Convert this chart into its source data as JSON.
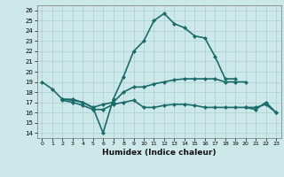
{
  "title": "",
  "xlabel": "Humidex (Indice chaleur)",
  "xlim": [
    -0.5,
    23.5
  ],
  "ylim": [
    13.5,
    26.5
  ],
  "xticks": [
    0,
    1,
    2,
    3,
    4,
    5,
    6,
    7,
    8,
    9,
    10,
    11,
    12,
    13,
    14,
    15,
    16,
    17,
    18,
    19,
    20,
    21,
    22,
    23
  ],
  "yticks": [
    14,
    15,
    16,
    17,
    18,
    19,
    20,
    21,
    22,
    23,
    24,
    25,
    26
  ],
  "bg_color": "#cce8e8",
  "line_color": "#1a6b6b",
  "grid_color": "#aacfcf",
  "lines": [
    {
      "x": [
        0,
        1,
        2,
        3,
        4,
        5,
        6,
        7,
        8,
        9,
        10,
        11,
        12,
        13,
        14,
        15,
        16,
        17,
        18,
        19
      ],
      "y": [
        19.0,
        18.3,
        17.3,
        17.3,
        17.0,
        16.5,
        14.0,
        17.3,
        19.5,
        22.0,
        23.0,
        25.0,
        25.7,
        24.7,
        24.3,
        23.5,
        23.3,
        21.5,
        19.3,
        19.3
      ],
      "marker": "D",
      "markersize": 2,
      "linewidth": 1.2
    },
    {
      "x": [
        2,
        3,
        4,
        5,
        6,
        7,
        8,
        9,
        10,
        11,
        12,
        13,
        14,
        15,
        16,
        17,
        18,
        19,
        20
      ],
      "y": [
        17.3,
        17.2,
        17.0,
        16.5,
        16.8,
        17.0,
        18.0,
        18.5,
        18.5,
        18.8,
        19.0,
        19.2,
        19.3,
        19.3,
        19.3,
        19.3,
        19.0,
        19.0,
        19.0
      ],
      "marker": "D",
      "markersize": 2,
      "linewidth": 1.2
    },
    {
      "x": [
        2,
        3,
        4,
        5,
        6,
        7,
        8,
        9,
        10,
        11,
        12,
        13,
        14,
        15,
        16,
        17,
        18,
        19,
        20,
        21,
        22,
        23
      ],
      "y": [
        17.2,
        17.0,
        16.7,
        16.3,
        16.3,
        16.8,
        17.0,
        17.2,
        16.5,
        16.5,
        16.7,
        16.8,
        16.8,
        16.7,
        16.5,
        16.5,
        16.5,
        16.5,
        16.5,
        16.5,
        16.8,
        16.0
      ],
      "marker": "D",
      "markersize": 2,
      "linewidth": 1.2
    },
    {
      "x": [
        20,
        21,
        22,
        23
      ],
      "y": [
        16.5,
        16.3,
        17.0,
        16.0
      ],
      "marker": "D",
      "markersize": 2,
      "linewidth": 1.2
    }
  ]
}
